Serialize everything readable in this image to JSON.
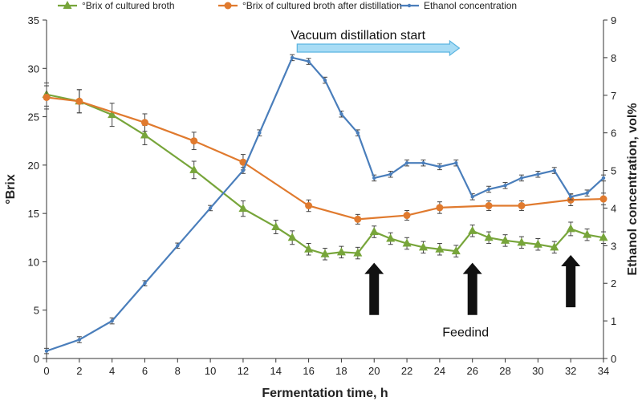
{
  "chart_data": {
    "type": "line",
    "x_axis": {
      "label": "Fermentation time, h",
      "range": [
        0,
        34
      ],
      "ticks": [
        0,
        2,
        4,
        6,
        8,
        10,
        12,
        14,
        16,
        18,
        20,
        22,
        24,
        26,
        28,
        30,
        32,
        34
      ]
    },
    "y_axis_left": {
      "label": "°Brix",
      "range": [
        0,
        35
      ],
      "ticks": [
        0,
        5,
        10,
        15,
        20,
        25,
        30,
        35
      ]
    },
    "y_axis_right": {
      "label": "Ethanol concentration,  vol%",
      "range": [
        0,
        9
      ],
      "ticks": [
        0,
        1,
        2,
        3,
        4,
        5,
        6,
        7,
        8,
        9
      ]
    },
    "grid": false,
    "legend_position": "top",
    "series": [
      {
        "name": "°Brix of cultured broth",
        "axis": "left",
        "color": "#77a53a",
        "marker": "triangle",
        "points": [
          [
            0,
            27.3
          ],
          [
            2,
            26.6
          ],
          [
            4,
            25.2
          ],
          [
            6,
            23.1
          ],
          [
            9,
            19.5
          ],
          [
            12,
            15.5
          ],
          [
            14,
            13.6
          ],
          [
            15,
            12.5
          ],
          [
            16,
            11.3
          ],
          [
            17,
            10.8
          ],
          [
            18,
            11.0
          ],
          [
            19,
            10.9
          ],
          [
            20,
            13.1
          ],
          [
            21,
            12.4
          ],
          [
            22,
            11.9
          ],
          [
            23,
            11.5
          ],
          [
            24,
            11.3
          ],
          [
            25,
            11.1
          ],
          [
            26,
            13.2
          ],
          [
            27,
            12.5
          ],
          [
            28,
            12.2
          ],
          [
            29,
            12.0
          ],
          [
            30,
            11.8
          ],
          [
            31,
            11.5
          ],
          [
            32,
            13.4
          ],
          [
            33,
            12.8
          ],
          [
            34,
            12.5
          ]
        ],
        "errors": [
          1.2,
          1.2,
          1.2,
          1.0,
          0.9,
          0.8,
          0.7,
          0.7,
          0.6,
          0.6,
          0.6,
          0.6,
          0.6,
          0.6,
          0.6,
          0.6,
          0.6,
          0.6,
          0.6,
          0.6,
          0.6,
          0.6,
          0.6,
          0.6,
          0.7,
          0.6,
          0.6
        ]
      },
      {
        "name": "°Brix  of cultured broth after distillation",
        "axis": "left",
        "color": "#e07a2e",
        "marker": "circle",
        "points": [
          [
            0,
            27.0
          ],
          [
            2,
            26.6
          ],
          [
            6,
            24.4
          ],
          [
            9,
            22.5
          ],
          [
            12,
            20.3
          ],
          [
            16,
            15.8
          ],
          [
            19,
            14.4
          ],
          [
            22,
            14.8
          ],
          [
            24,
            15.6
          ],
          [
            27,
            15.8
          ],
          [
            29,
            15.8
          ],
          [
            32,
            16.4
          ],
          [
            34,
            16.5
          ]
        ],
        "errors": [
          1.2,
          1.2,
          0.9,
          0.9,
          0.8,
          0.6,
          0.5,
          0.5,
          0.6,
          0.5,
          0.5,
          0.6,
          0.6
        ]
      },
      {
        "name": "Ethanol concentration",
        "axis": "right",
        "color": "#4a7ebb",
        "marker": "dot",
        "points": [
          [
            0,
            0.2
          ],
          [
            2,
            0.5
          ],
          [
            4,
            1.0
          ],
          [
            6,
            2.0
          ],
          [
            8,
            3.0
          ],
          [
            10,
            4.0
          ],
          [
            12,
            5.0
          ],
          [
            13,
            6.0
          ],
          [
            15,
            8.0
          ],
          [
            16,
            7.9
          ],
          [
            17,
            7.4
          ],
          [
            18,
            6.5
          ],
          [
            19,
            6.0
          ],
          [
            20,
            4.8
          ],
          [
            21,
            4.9
          ],
          [
            22,
            5.2
          ],
          [
            23,
            5.2
          ],
          [
            24,
            5.1
          ],
          [
            25,
            5.2
          ],
          [
            26,
            4.3
          ],
          [
            27,
            4.5
          ],
          [
            28,
            4.6
          ],
          [
            29,
            4.8
          ],
          [
            30,
            4.9
          ],
          [
            31,
            5.0
          ],
          [
            32,
            4.3
          ],
          [
            33,
            4.4
          ],
          [
            34,
            4.8
          ]
        ],
        "errors": [
          0.07,
          0.08,
          0.08,
          0.07,
          0.07,
          0.07,
          0.08,
          0.08,
          0.08,
          0.08,
          0.08,
          0.08,
          0.08,
          0.08,
          0.08,
          0.08,
          0.08,
          0.08,
          0.08,
          0.08,
          0.08,
          0.08,
          0.08,
          0.08,
          0.08,
          0.08,
          0.08,
          0.08
        ]
      }
    ],
    "annotations": {
      "vacuum_label": "Vacuum distillation start",
      "vacuum_arrow_range_x": [
        15.3,
        25.2
      ],
      "vacuum_arrow_y": 32.1,
      "arrow_fill": "#a8dcf5",
      "arrow_stroke": "#5ab4e0",
      "feeding_label": "Feedind",
      "feeding_label_anchor": [
        27,
        2.3
      ],
      "feeding_arrows": [
        {
          "x": 20,
          "y_bottom": 4.5,
          "y_top": 9.9
        },
        {
          "x": 26,
          "y_bottom": 4.5,
          "y_top": 9.9
        },
        {
          "x": 32,
          "y_bottom": 5.3,
          "y_top": 10.7
        }
      ]
    }
  }
}
